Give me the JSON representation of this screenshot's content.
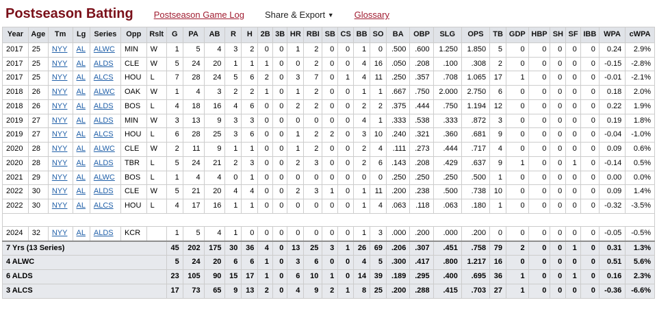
{
  "header": {
    "title": "Postseason Batting",
    "game_log_link": "Postseason Game Log",
    "share_export_label": "Share & Export",
    "share_export_caret": "▼",
    "glossary_link": "Glossary"
  },
  "colors": {
    "title": "#7a1019",
    "nav_link": "#a01c30",
    "cell_link": "#1f5fa8",
    "header_bg": "#e0e3e8",
    "totals_bg": "#e7e9ed",
    "border": "#cccccc"
  },
  "table": {
    "columns": [
      "Year",
      "Age",
      "Tm",
      "Lg",
      "Series",
      "Opp",
      "Rslt",
      "G",
      "PA",
      "AB",
      "R",
      "H",
      "2B",
      "3B",
      "HR",
      "RBI",
      "SB",
      "CS",
      "BB",
      "SO",
      "BA",
      "OBP",
      "SLG",
      "OPS",
      "TB",
      "GDP",
      "HBP",
      "SH",
      "SF",
      "IBB",
      "WPA",
      "cWPA"
    ],
    "rows": [
      {
        "cells": [
          "2017",
          "25",
          "NYY",
          "AL",
          "ALWC",
          "MIN",
          "W",
          "1",
          "5",
          "4",
          "3",
          "2",
          "0",
          "0",
          "1",
          "2",
          "0",
          "0",
          "1",
          "0",
          ".500",
          ".600",
          "1.250",
          "1.850",
          "5",
          "0",
          "0",
          "0",
          "0",
          "0",
          "0.24",
          "2.9%"
        ]
      },
      {
        "cells": [
          "2017",
          "25",
          "NYY",
          "AL",
          "ALDS",
          "CLE",
          "W",
          "5",
          "24",
          "20",
          "1",
          "1",
          "1",
          "0",
          "0",
          "2",
          "0",
          "0",
          "4",
          "16",
          ".050",
          ".208",
          ".100",
          ".308",
          "2",
          "0",
          "0",
          "0",
          "0",
          "0",
          "-0.15",
          "-2.8%"
        ]
      },
      {
        "cells": [
          "2017",
          "25",
          "NYY",
          "AL",
          "ALCS",
          "HOU",
          "L",
          "7",
          "28",
          "24",
          "5",
          "6",
          "2",
          "0",
          "3",
          "7",
          "0",
          "1",
          "4",
          "11",
          ".250",
          ".357",
          ".708",
          "1.065",
          "17",
          "1",
          "0",
          "0",
          "0",
          "0",
          "-0.01",
          "-2.1%"
        ]
      },
      {
        "cells": [
          "2018",
          "26",
          "NYY",
          "AL",
          "ALWC",
          "OAK",
          "W",
          "1",
          "4",
          "3",
          "2",
          "2",
          "1",
          "0",
          "1",
          "2",
          "0",
          "0",
          "1",
          "1",
          ".667",
          ".750",
          "2.000",
          "2.750",
          "6",
          "0",
          "0",
          "0",
          "0",
          "0",
          "0.18",
          "2.0%"
        ]
      },
      {
        "cells": [
          "2018",
          "26",
          "NYY",
          "AL",
          "ALDS",
          "BOS",
          "L",
          "4",
          "18",
          "16",
          "4",
          "6",
          "0",
          "0",
          "2",
          "2",
          "0",
          "0",
          "2",
          "2",
          ".375",
          ".444",
          ".750",
          "1.194",
          "12",
          "0",
          "0",
          "0",
          "0",
          "0",
          "0.22",
          "1.9%"
        ]
      },
      {
        "cells": [
          "2019",
          "27",
          "NYY",
          "AL",
          "ALDS",
          "MIN",
          "W",
          "3",
          "13",
          "9",
          "3",
          "3",
          "0",
          "0",
          "0",
          "0",
          "0",
          "0",
          "4",
          "1",
          ".333",
          ".538",
          ".333",
          ".872",
          "3",
          "0",
          "0",
          "0",
          "0",
          "0",
          "0.19",
          "1.8%"
        ]
      },
      {
        "cells": [
          "2019",
          "27",
          "NYY",
          "AL",
          "ALCS",
          "HOU",
          "L",
          "6",
          "28",
          "25",
          "3",
          "6",
          "0",
          "0",
          "1",
          "2",
          "2",
          "0",
          "3",
          "10",
          ".240",
          ".321",
          ".360",
          ".681",
          "9",
          "0",
          "0",
          "0",
          "0",
          "0",
          "-0.04",
          "-1.0%"
        ]
      },
      {
        "cells": [
          "2020",
          "28",
          "NYY",
          "AL",
          "ALWC",
          "CLE",
          "W",
          "2",
          "11",
          "9",
          "1",
          "1",
          "0",
          "0",
          "1",
          "2",
          "0",
          "0",
          "2",
          "4",
          ".111",
          ".273",
          ".444",
          ".717",
          "4",
          "0",
          "0",
          "0",
          "0",
          "0",
          "0.09",
          "0.6%"
        ]
      },
      {
        "cells": [
          "2020",
          "28",
          "NYY",
          "AL",
          "ALDS",
          "TBR",
          "L",
          "5",
          "24",
          "21",
          "2",
          "3",
          "0",
          "0",
          "2",
          "3",
          "0",
          "0",
          "2",
          "6",
          ".143",
          ".208",
          ".429",
          ".637",
          "9",
          "1",
          "0",
          "0",
          "1",
          "0",
          "-0.14",
          "0.5%"
        ]
      },
      {
        "cells": [
          "2021",
          "29",
          "NYY",
          "AL",
          "ALWC",
          "BOS",
          "L",
          "1",
          "4",
          "4",
          "0",
          "1",
          "0",
          "0",
          "0",
          "0",
          "0",
          "0",
          "0",
          "0",
          ".250",
          ".250",
          ".250",
          ".500",
          "1",
          "0",
          "0",
          "0",
          "0",
          "0",
          "0.00",
          "0.0%"
        ]
      },
      {
        "cells": [
          "2022",
          "30",
          "NYY",
          "AL",
          "ALDS",
          "CLE",
          "W",
          "5",
          "21",
          "20",
          "4",
          "4",
          "0",
          "0",
          "2",
          "3",
          "1",
          "0",
          "1",
          "11",
          ".200",
          ".238",
          ".500",
          ".738",
          "10",
          "0",
          "0",
          "0",
          "0",
          "0",
          "0.09",
          "1.4%"
        ]
      },
      {
        "cells": [
          "2022",
          "30",
          "NYY",
          "AL",
          "ALCS",
          "HOU",
          "L",
          "4",
          "17",
          "16",
          "1",
          "1",
          "0",
          "0",
          "0",
          "0",
          "0",
          "0",
          "1",
          "4",
          ".063",
          ".118",
          ".063",
          ".180",
          "1",
          "0",
          "0",
          "0",
          "0",
          "0",
          "-0.32",
          "-3.5%"
        ]
      },
      {
        "spacer": true
      },
      {
        "cells": [
          "2024",
          "32",
          "NYY",
          "AL",
          "ALDS",
          "KCR",
          "",
          "1",
          "5",
          "4",
          "1",
          "0",
          "0",
          "0",
          "0",
          "0",
          "0",
          "0",
          "1",
          "3",
          ".000",
          ".200",
          ".000",
          ".200",
          "0",
          "0",
          "0",
          "0",
          "0",
          "0",
          "-0.05",
          "-0.5%"
        ]
      }
    ],
    "totals": [
      {
        "label": "7 Yrs (13 Series)",
        "cells": [
          "45",
          "202",
          "175",
          "30",
          "36",
          "4",
          "0",
          "13",
          "25",
          "3",
          "1",
          "26",
          "69",
          ".206",
          ".307",
          ".451",
          ".758",
          "79",
          "2",
          "0",
          "0",
          "1",
          "0",
          "0.31",
          "1.3%"
        ]
      },
      {
        "label": "4 ALWC",
        "cells": [
          "5",
          "24",
          "20",
          "6",
          "6",
          "1",
          "0",
          "3",
          "6",
          "0",
          "0",
          "4",
          "5",
          ".300",
          ".417",
          ".800",
          "1.217",
          "16",
          "0",
          "0",
          "0",
          "0",
          "0",
          "0.51",
          "5.6%"
        ]
      },
      {
        "label": "6 ALDS",
        "cells": [
          "23",
          "105",
          "90",
          "15",
          "17",
          "1",
          "0",
          "6",
          "10",
          "1",
          "0",
          "14",
          "39",
          ".189",
          ".295",
          ".400",
          ".695",
          "36",
          "1",
          "0",
          "0",
          "1",
          "0",
          "0.16",
          "2.3%"
        ]
      },
      {
        "label": "3 ALCS",
        "cells": [
          "17",
          "73",
          "65",
          "9",
          "13",
          "2",
          "0",
          "4",
          "9",
          "2",
          "1",
          "8",
          "25",
          ".200",
          ".288",
          ".415",
          ".703",
          "27",
          "1",
          "0",
          "0",
          "0",
          "0",
          "-0.36",
          "-6.6%"
        ]
      }
    ]
  }
}
